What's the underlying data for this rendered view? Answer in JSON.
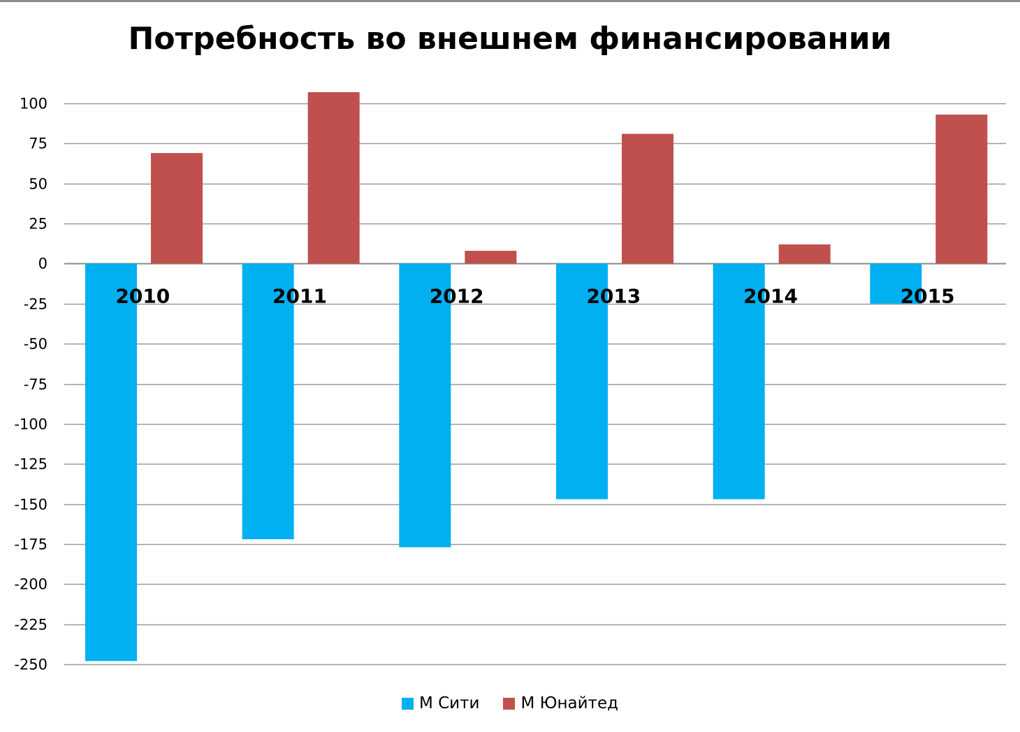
{
  "chart_data": {
    "type": "bar",
    "title": "Потребность во внешнем финансировании",
    "categories": [
      "2010",
      "2011",
      "2012",
      "2013",
      "2014",
      "2015"
    ],
    "series": [
      {
        "name": "М Сити",
        "color": "#00b0f0",
        "values": [
          -248,
          -172,
          -177,
          -147,
          -147,
          -25
        ]
      },
      {
        "name": "М Юнайтед",
        "color": "#c0504d",
        "values": [
          69,
          107,
          8,
          81,
          12,
          93
        ]
      }
    ],
    "ylim": [
      -250,
      100
    ],
    "yticks": [
      100,
      75,
      50,
      25,
      0,
      -25,
      -50,
      -75,
      -100,
      -125,
      -150,
      -175,
      -200,
      -225,
      -250
    ],
    "grid": true,
    "legend_position": "bottom"
  }
}
